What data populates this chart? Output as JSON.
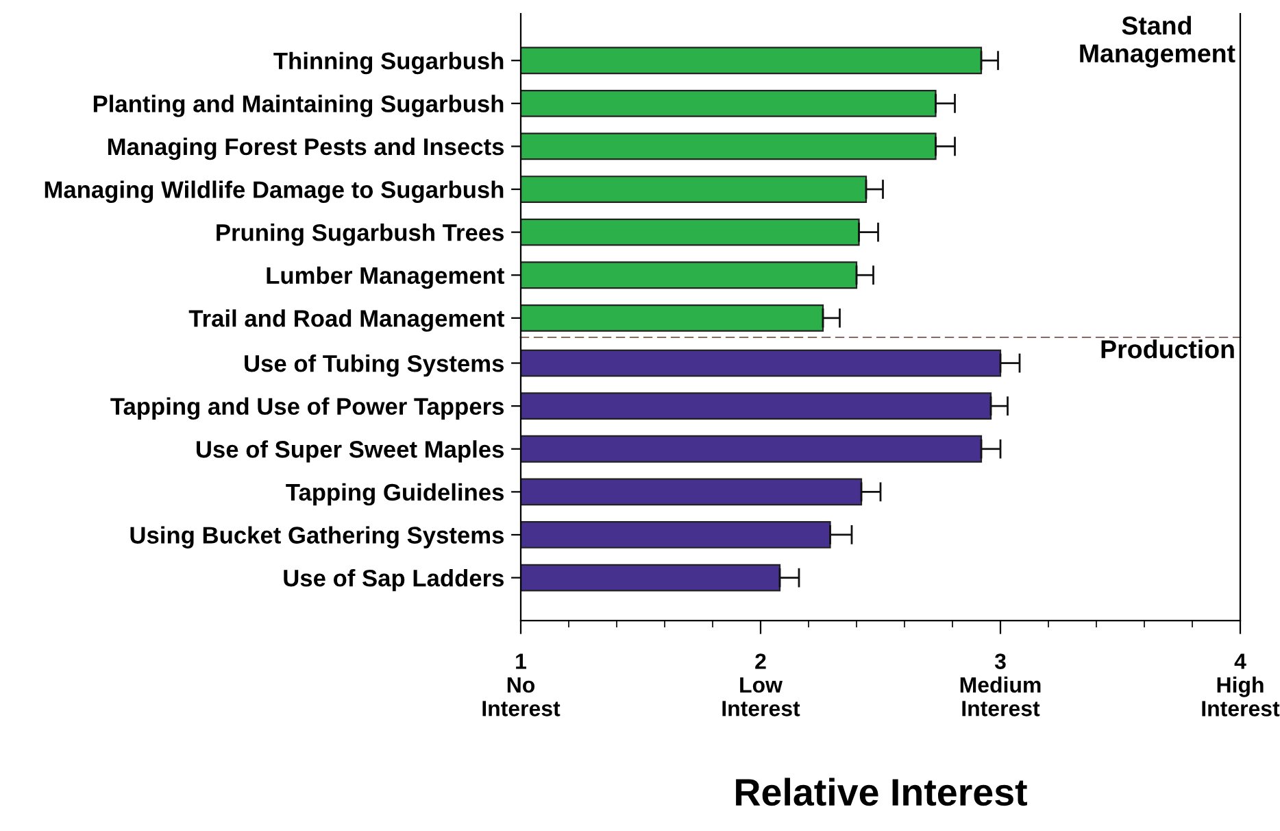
{
  "chart_data": [
    {
      "type": "bar",
      "orientation": "horizontal",
      "categories": [
        "Thinning Sugarbush",
        "Planting and Maintaining Sugarbush",
        "Managing Forest Pests and Insects",
        "Managing Wildlife Damage to Sugarbush",
        "Pruning Sugarbush Trees",
        "Lumber Management",
        "Trail and Road Management"
      ],
      "series": [
        {
          "color": "#2bb04a",
          "values": [
            2.92,
            2.73,
            2.73,
            2.44,
            2.41,
            2.4,
            2.26
          ],
          "errors": [
            0.07,
            0.08,
            0.08,
            0.07,
            0.08,
            0.07,
            0.07
          ]
        }
      ],
      "xlim": [
        1,
        4
      ],
      "tick_labels": "y",
      "annotations": [
        "Stand\nManagement"
      ]
    },
    {
      "type": "bar",
      "orientation": "horizontal",
      "categories": [
        "Use of Tubing Systems",
        "Tapping and Use of Power Tappers",
        "Use of Super Sweet Maples",
        "Tapping Guidelines",
        "Using Bucket Gathering Systems",
        "Use of Sap Ladders"
      ],
      "series": [
        {
          "color": "#46318f",
          "values": [
            3.0,
            2.96,
            2.92,
            2.42,
            2.29,
            2.08
          ],
          "errors": [
            0.08,
            0.07,
            0.08,
            0.08,
            0.09,
            0.08
          ]
        }
      ],
      "xlim": [
        1,
        4
      ],
      "xticks": [
        {
          "value": 1,
          "label": "1\nNo\nInterest"
        },
        {
          "value": 2,
          "label": "2\nLow\nInterest"
        },
        {
          "value": 3,
          "label": "3\nMedium\nInterest"
        },
        {
          "value": 4,
          "label": "4\nHigh\nInterest"
        }
      ],
      "xlabel": "Relative Interest",
      "annotations": [
        "Production"
      ]
    }
  ]
}
